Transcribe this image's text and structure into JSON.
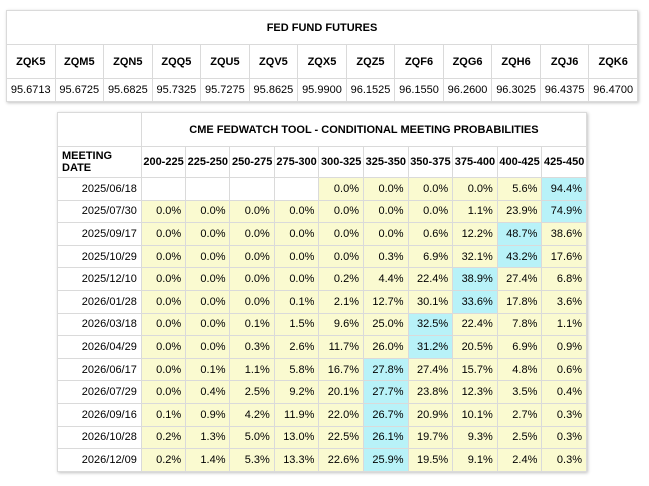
{
  "futures": {
    "title": "FED FUND FUTURES",
    "symbols": [
      "ZQK5",
      "ZQM5",
      "ZQN5",
      "ZQQ5",
      "ZQU5",
      "ZQV5",
      "ZQX5",
      "ZQZ5",
      "ZQF6",
      "ZQG6",
      "ZQH6",
      "ZQJ6",
      "ZQK6"
    ],
    "prices": [
      "95.6713",
      "95.6725",
      "95.6825",
      "95.7325",
      "95.7275",
      "95.8625",
      "95.9900",
      "96.1525",
      "96.1550",
      "96.2600",
      "96.3025",
      "96.4375",
      "96.4700"
    ]
  },
  "fedwatch": {
    "title": "CME FEDWATCH TOOL - CONDITIONAL MEETING PROBABILITIES",
    "date_header": "MEETING DATE",
    "ranges": [
      "200-225",
      "225-250",
      "250-275",
      "275-300",
      "300-325",
      "325-350",
      "350-375",
      "375-400",
      "400-425",
      "425-450"
    ],
    "colors": {
      "tint": "#fafad0",
      "highlight": "#b8f2f8"
    },
    "rows": [
      {
        "date": "2025/06/18",
        "values": [
          "",
          "",
          "",
          "",
          "0.0%",
          "0.0%",
          "0.0%",
          "0.0%",
          "5.6%",
          "94.4%"
        ],
        "max": 9
      },
      {
        "date": "2025/07/30",
        "values": [
          "0.0%",
          "0.0%",
          "0.0%",
          "0.0%",
          "0.0%",
          "0.0%",
          "0.0%",
          "1.1%",
          "23.9%",
          "74.9%"
        ],
        "max": 9
      },
      {
        "date": "2025/09/17",
        "values": [
          "0.0%",
          "0.0%",
          "0.0%",
          "0.0%",
          "0.0%",
          "0.0%",
          "0.6%",
          "12.2%",
          "48.7%",
          "38.6%"
        ],
        "max": 8
      },
      {
        "date": "2025/10/29",
        "values": [
          "0.0%",
          "0.0%",
          "0.0%",
          "0.0%",
          "0.0%",
          "0.3%",
          "6.9%",
          "32.1%",
          "43.2%",
          "17.6%"
        ],
        "max": 8
      },
      {
        "date": "2025/12/10",
        "values": [
          "0.0%",
          "0.0%",
          "0.0%",
          "0.0%",
          "0.2%",
          "4.4%",
          "22.4%",
          "38.9%",
          "27.4%",
          "6.8%"
        ],
        "max": 7
      },
      {
        "date": "2026/01/28",
        "values": [
          "0.0%",
          "0.0%",
          "0.0%",
          "0.1%",
          "2.1%",
          "12.7%",
          "30.1%",
          "33.6%",
          "17.8%",
          "3.6%"
        ],
        "max": 7
      },
      {
        "date": "2026/03/18",
        "values": [
          "0.0%",
          "0.0%",
          "0.1%",
          "1.5%",
          "9.6%",
          "25.0%",
          "32.5%",
          "22.4%",
          "7.8%",
          "1.1%"
        ],
        "max": 6
      },
      {
        "date": "2026/04/29",
        "values": [
          "0.0%",
          "0.0%",
          "0.3%",
          "2.6%",
          "11.7%",
          "26.0%",
          "31.2%",
          "20.5%",
          "6.9%",
          "0.9%"
        ],
        "max": 6
      },
      {
        "date": "2026/06/17",
        "values": [
          "0.0%",
          "0.1%",
          "1.1%",
          "5.8%",
          "16.7%",
          "27.8%",
          "27.4%",
          "15.7%",
          "4.8%",
          "0.6%"
        ],
        "max": 5
      },
      {
        "date": "2026/07/29",
        "values": [
          "0.0%",
          "0.4%",
          "2.5%",
          "9.2%",
          "20.1%",
          "27.7%",
          "23.8%",
          "12.3%",
          "3.5%",
          "0.4%"
        ],
        "max": 5
      },
      {
        "date": "2026/09/16",
        "values": [
          "0.1%",
          "0.9%",
          "4.2%",
          "11.9%",
          "22.0%",
          "26.7%",
          "20.9%",
          "10.1%",
          "2.7%",
          "0.3%"
        ],
        "max": 5
      },
      {
        "date": "2026/10/28",
        "values": [
          "0.2%",
          "1.3%",
          "5.0%",
          "13.0%",
          "22.5%",
          "26.1%",
          "19.7%",
          "9.3%",
          "2.5%",
          "0.3%"
        ],
        "max": 5
      },
      {
        "date": "2026/12/09",
        "values": [
          "0.2%",
          "1.4%",
          "5.3%",
          "13.3%",
          "22.6%",
          "25.9%",
          "19.5%",
          "9.1%",
          "2.4%",
          "0.3%"
        ],
        "max": 5
      }
    ]
  }
}
